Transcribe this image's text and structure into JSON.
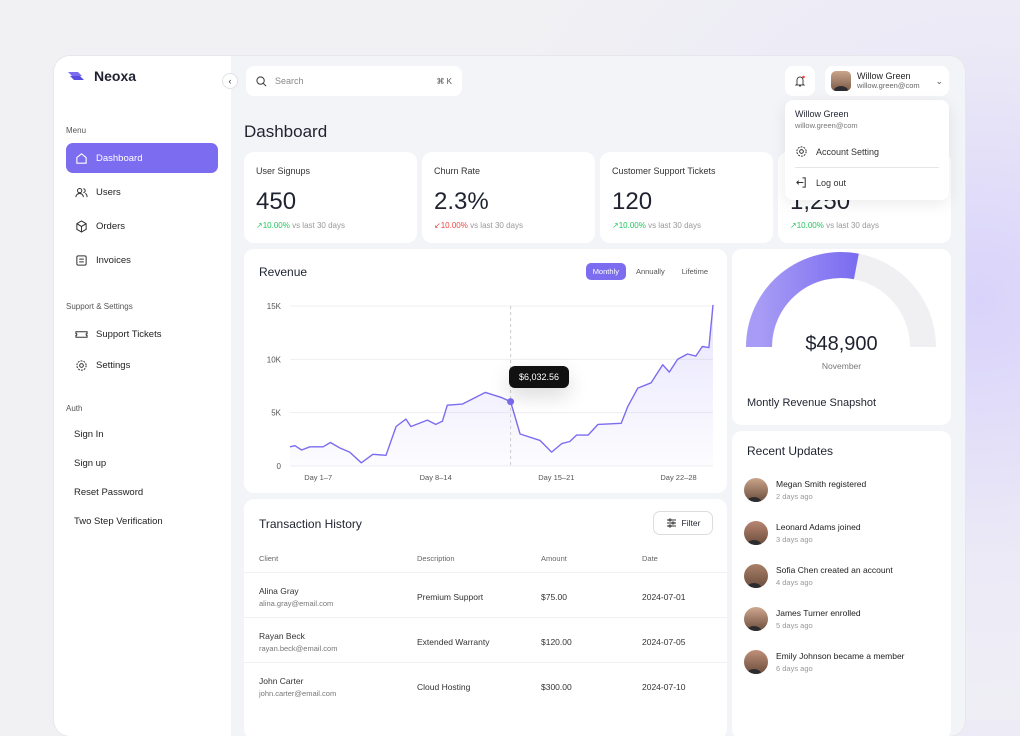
{
  "app": {
    "name": "Neoxa"
  },
  "sidebar": {
    "menu_label": "Menu",
    "items": [
      {
        "label": "Dashboard",
        "icon": "home-icon"
      },
      {
        "label": "Users",
        "icon": "users-icon"
      },
      {
        "label": "Orders",
        "icon": "box-icon"
      },
      {
        "label": "Invoices",
        "icon": "invoice-icon"
      }
    ],
    "support_label": "Support & Settings",
    "support_items": [
      {
        "label": "Support Tickets",
        "icon": "ticket-icon"
      },
      {
        "label": "Settings",
        "icon": "gear-icon"
      }
    ],
    "auth_label": "Auth",
    "auth_items": [
      "Sign In",
      "Sign up",
      "Reset Password",
      "Two Step Verification"
    ]
  },
  "header": {
    "search_placeholder": "Search",
    "search_shortcut": "⌘ K",
    "user_name": "Willow Green",
    "user_email": "willow.green@com"
  },
  "user_menu": {
    "name": "Willow Green",
    "email": "willow.green@com",
    "items": [
      "Account Setting",
      "Log out"
    ]
  },
  "page_title": "Dashboard",
  "kpis": [
    {
      "title": "User Signups",
      "value": "450",
      "change": "↗10.00%",
      "trend": "up",
      "note": "vs last 30 days"
    },
    {
      "title": "Churn Rate",
      "value": "2.3%",
      "change": "↙10.00%",
      "trend": "down",
      "note": "vs last 30 days"
    },
    {
      "title": "Customer Support Tickets",
      "value": "120",
      "change": "↗10.00%",
      "trend": "up",
      "note": "vs last 30 days"
    },
    {
      "title": "",
      "value": "1,250",
      "change": "↗10.00%",
      "trend": "up",
      "note": "vs last 30 days"
    }
  ],
  "revenue": {
    "title": "Revenue",
    "tabs": [
      "Monthly",
      "Annually",
      "Lifetime"
    ],
    "active_tab": "Monthly",
    "tooltip": "$6,032.56"
  },
  "chart_data": {
    "type": "area",
    "title": "Revenue",
    "ylim": [
      0,
      15000
    ],
    "yticks": [
      "0",
      "5K",
      "10K",
      "15K"
    ],
    "ytick_values": [
      0,
      5000,
      10000,
      15000
    ],
    "categories": [
      "Day 1–7",
      "Day 8–14",
      "Day 15–21",
      "Day 22–28"
    ],
    "category_centers": [
      2.8,
      10.3,
      18,
      25.8
    ],
    "xlim": [
      1,
      28
    ],
    "x": [
      1,
      1.32,
      1.74,
      2.27,
      3.11,
      3.58,
      4.17,
      4.81,
      5.55,
      6.29,
      7.13,
      7.77,
      8.4,
      8.72,
      9.77,
      10.3,
      10.73,
      11.04,
      12,
      13.47,
      14.53,
      15.08,
      15.69,
      16.96,
      17.7,
      18.34,
      18.86,
      19.29,
      20.03,
      20.66,
      22.14,
      22.57,
      23.2,
      24.05,
      24.79,
      25.21,
      25.74,
      26.37,
      26.9,
      27.32,
      27.74,
      28
    ],
    "y": [
      1800,
      1900,
      1500,
      1800,
      1800,
      2200,
      1700,
      1300,
      300,
      1100,
      1000,
      3700,
      4400,
      3700,
      4300,
      3900,
      4200,
      5700,
      5800,
      6900,
      6400,
      6032.56,
      3000,
      2400,
      1300,
      2100,
      2300,
      2900,
      2900,
      3900,
      4000,
      5600,
      7300,
      7800,
      9500,
      8800,
      10000,
      10500,
      10300,
      11200,
      11100,
      15100
    ],
    "highlight_index": 21,
    "color": "#7b6cf0"
  },
  "gauge": {
    "value": "$48,900",
    "label": "November",
    "title": "Montly Revenue Snapshot",
    "fraction": 0.56,
    "color": "#8f82f3"
  },
  "transactions": {
    "title": "Transaction History",
    "filter_label": "Filter",
    "columns": [
      "Client",
      "Description",
      "Amount",
      "Date"
    ],
    "rows": [
      {
        "name": "Alina Gray",
        "email": "alina.gray@email.com",
        "desc": "Premium Support",
        "amount": "$75.00",
        "date": "2024-07-01"
      },
      {
        "name": "Rayan Beck",
        "email": "rayan.beck@email.com",
        "desc": "Extended Warranty",
        "amount": "$120.00",
        "date": "2024-07-05"
      },
      {
        "name": "John Carter",
        "email": "john.carter@email.com",
        "desc": "Cloud Hosting",
        "amount": "$300.00",
        "date": "2024-07-10"
      }
    ]
  },
  "updates": {
    "title": "Recent Updates",
    "items": [
      {
        "text": "Megan Smith registered",
        "time": "2 days ago"
      },
      {
        "text": "Leonard Adams joined",
        "time": "3 days ago"
      },
      {
        "text": "Sofia Chen created an account",
        "time": "4 days ago"
      },
      {
        "text": "James Turner enrolled",
        "time": "5 days ago"
      },
      {
        "text": "Emily Johnson became a member",
        "time": "6 days ago"
      }
    ]
  }
}
